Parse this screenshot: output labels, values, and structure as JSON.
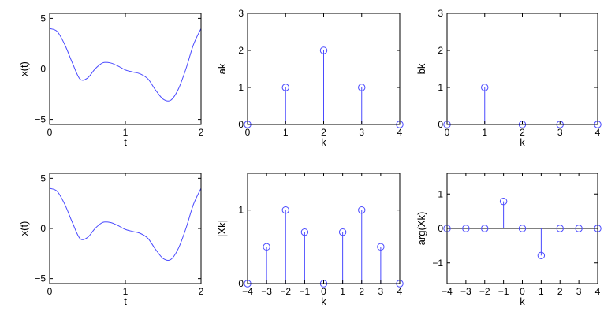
{
  "chart_data": [
    {
      "type": "line",
      "xlabel": "t",
      "ylabel": "x(t)",
      "xlim": [
        0,
        2
      ],
      "ylim": [
        -5.5,
        5.5
      ],
      "xticks": [
        0,
        1,
        2
      ],
      "yticks": [
        -5,
        0,
        5
      ],
      "color": "#4a4aff",
      "x": [
        0,
        0.1,
        0.2,
        0.3,
        0.4,
        0.5,
        0.6,
        0.7,
        0.8,
        0.9,
        1.0,
        1.1,
        1.2,
        1.3,
        1.4,
        1.5,
        1.6,
        1.7,
        1.8,
        1.9,
        2.0
      ],
      "y": [
        4.0,
        3.7,
        2.4,
        0.6,
        -1.0,
        -0.9,
        0.0,
        0.6,
        0.6,
        0.3,
        -0.1,
        -0.3,
        -0.5,
        -1.0,
        -2.1,
        -3.0,
        -3.1,
        -2.0,
        0.0,
        2.4,
        4.0
      ]
    },
    {
      "type": "stem",
      "xlabel": "k",
      "ylabel": "ak",
      "xlim": [
        0,
        4
      ],
      "ylim": [
        0,
        3
      ],
      "xticks": [
        0,
        1,
        2,
        3,
        4
      ],
      "yticks": [
        0,
        1,
        2,
        3
      ],
      "color": "#4a4aff",
      "x": [
        0,
        1,
        2,
        3,
        4
      ],
      "y": [
        0,
        1,
        2,
        1,
        0
      ]
    },
    {
      "type": "stem",
      "xlabel": "k",
      "ylabel": "bk",
      "xlim": [
        0,
        4
      ],
      "ylim": [
        0,
        3
      ],
      "xticks": [
        0,
        1,
        2,
        3,
        4
      ],
      "yticks": [
        0,
        1,
        2,
        3
      ],
      "color": "#4a4aff",
      "x": [
        0,
        1,
        2,
        3,
        4
      ],
      "y": [
        0,
        1,
        0,
        0,
        0
      ]
    },
    {
      "type": "line",
      "xlabel": "t",
      "ylabel": "x(t)",
      "xlim": [
        0,
        2
      ],
      "ylim": [
        -5.5,
        5.5
      ],
      "xticks": [
        0,
        1,
        2
      ],
      "yticks": [
        -5,
        0,
        5
      ],
      "color": "#4a4aff",
      "x": [
        0,
        0.1,
        0.2,
        0.3,
        0.4,
        0.5,
        0.6,
        0.7,
        0.8,
        0.9,
        1.0,
        1.1,
        1.2,
        1.3,
        1.4,
        1.5,
        1.6,
        1.7,
        1.8,
        1.9,
        2.0
      ],
      "y": [
        4.0,
        3.7,
        2.4,
        0.6,
        -1.0,
        -0.9,
        0.0,
        0.6,
        0.6,
        0.3,
        -0.1,
        -0.3,
        -0.5,
        -1.0,
        -2.1,
        -3.0,
        -3.1,
        -2.0,
        0.0,
        2.4,
        4.0
      ]
    },
    {
      "type": "stem",
      "xlabel": "k",
      "ylabel": "|Xk|",
      "xlim": [
        -4,
        4
      ],
      "ylim": [
        0,
        1.5
      ],
      "xticks": [
        -4,
        -3,
        -2,
        -1,
        0,
        1,
        2,
        3,
        4
      ],
      "yticks": [
        0,
        1
      ],
      "color": "#4a4aff",
      "x": [
        -4,
        -3,
        -2,
        -1,
        0,
        1,
        2,
        3,
        4
      ],
      "y": [
        0,
        0.5,
        1,
        0.7,
        0,
        0.7,
        1,
        0.5,
        0
      ]
    },
    {
      "type": "stem",
      "xlabel": "k",
      "ylabel": "arg(Xk)",
      "xlim": [
        -4,
        4
      ],
      "ylim": [
        -1.6,
        1.6
      ],
      "xticks": [
        -4,
        -3,
        -2,
        -1,
        0,
        1,
        2,
        3,
        4
      ],
      "yticks": [
        -1,
        0,
        1
      ],
      "color": "#4a4aff",
      "x": [
        -4,
        -3,
        -2,
        -1,
        0,
        1,
        2,
        3,
        4
      ],
      "y": [
        0,
        0,
        0,
        0.785,
        0,
        -0.785,
        0,
        0,
        0
      ]
    }
  ]
}
